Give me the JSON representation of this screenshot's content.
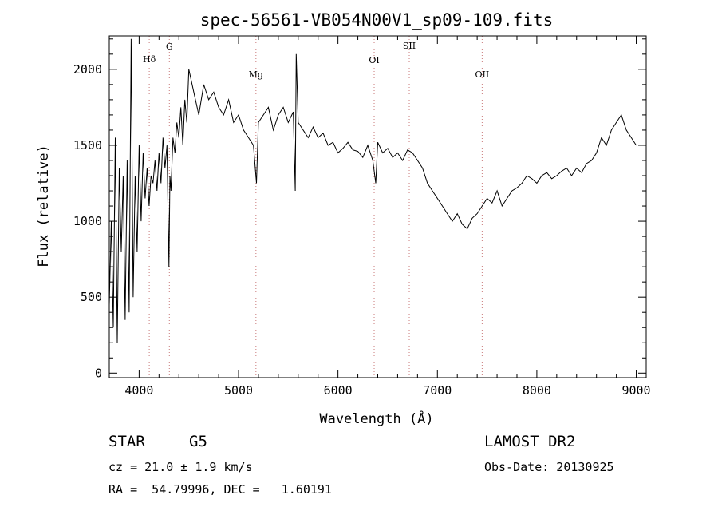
{
  "chart_data": {
    "type": "line",
    "title": "spec-56561-VB054N00V1_sp09-109.fits",
    "xlabel": "Wavelength (Å)",
    "ylabel": "Flux (relative)",
    "xlim": [
      3700,
      9100
    ],
    "ylim": [
      -30,
      2220
    ],
    "x_ticks": [
      4000,
      5000,
      6000,
      7000,
      8000,
      9000
    ],
    "y_ticks": [
      0,
      500,
      1000,
      1500,
      2000
    ],
    "grid": false,
    "series": [
      {
        "color": "#000000",
        "x": [
          3700,
          3720,
          3740,
          3760,
          3780,
          3800,
          3820,
          3840,
          3860,
          3880,
          3900,
          3920,
          3940,
          3960,
          3980,
          4000,
          4020,
          4040,
          4060,
          4080,
          4100,
          4120,
          4140,
          4160,
          4180,
          4200,
          4220,
          4240,
          4260,
          4280,
          4300,
          4310,
          4320,
          4340,
          4360,
          4380,
          4400,
          4420,
          4440,
          4460,
          4480,
          4500,
          4550,
          4600,
          4650,
          4700,
          4750,
          4800,
          4850,
          4900,
          4950,
          5000,
          5050,
          5100,
          5150,
          5180,
          5200,
          5250,
          5300,
          5350,
          5400,
          5450,
          5500,
          5550,
          5570,
          5580,
          5600,
          5650,
          5700,
          5750,
          5800,
          5850,
          5900,
          5950,
          6000,
          6050,
          6100,
          6150,
          6200,
          6250,
          6300,
          6350,
          6380,
          6400,
          6450,
          6500,
          6550,
          6600,
          6650,
          6700,
          6750,
          6800,
          6850,
          6900,
          6950,
          7000,
          7050,
          7100,
          7150,
          7200,
          7250,
          7300,
          7350,
          7400,
          7450,
          7500,
          7550,
          7600,
          7650,
          7700,
          7750,
          7800,
          7850,
          7900,
          7950,
          8000,
          8050,
          8100,
          8150,
          8200,
          8250,
          8300,
          8350,
          8400,
          8450,
          8500,
          8550,
          8600,
          8650,
          8700,
          8750,
          8800,
          8850,
          8900,
          8950,
          9000
        ],
        "y": [
          450,
          1000,
          300,
          1550,
          200,
          1350,
          800,
          1300,
          350,
          1400,
          400,
          2200,
          500,
          1300,
          800,
          1500,
          1000,
          1450,
          1150,
          1350,
          1100,
          1300,
          1250,
          1400,
          1200,
          1450,
          1250,
          1550,
          1350,
          1500,
          700,
          1300,
          1200,
          1550,
          1450,
          1650,
          1550,
          1750,
          1500,
          1800,
          1650,
          2000,
          1850,
          1700,
          1900,
          1800,
          1850,
          1750,
          1700,
          1800,
          1650,
          1700,
          1600,
          1550,
          1500,
          1250,
          1650,
          1700,
          1750,
          1600,
          1700,
          1750,
          1650,
          1720,
          1200,
          2100,
          1650,
          1600,
          1550,
          1620,
          1550,
          1580,
          1500,
          1520,
          1450,
          1480,
          1520,
          1470,
          1460,
          1420,
          1500,
          1400,
          1250,
          1520,
          1450,
          1480,
          1420,
          1450,
          1400,
          1470,
          1450,
          1400,
          1350,
          1250,
          1200,
          1150,
          1100,
          1050,
          1000,
          1050,
          980,
          950,
          1020,
          1050,
          1100,
          1150,
          1120,
          1200,
          1100,
          1150,
          1200,
          1220,
          1250,
          1300,
          1280,
          1250,
          1300,
          1320,
          1280,
          1300,
          1330,
          1350,
          1300,
          1350,
          1320,
          1380,
          1400,
          1450,
          1550,
          1500,
          1600,
          1650,
          1700,
          1600,
          1550,
          1500
        ]
      }
    ],
    "annotations": [
      {
        "label": "Hδ",
        "wavelength": 4102
      },
      {
        "label": "G",
        "wavelength": 4304
      },
      {
        "label": "Mg",
        "wavelength": 5175
      },
      {
        "label": "OI",
        "wavelength": 6364
      },
      {
        "label": "SII",
        "wavelength": 6717
      },
      {
        "label": "OII",
        "wavelength": 7450
      }
    ]
  },
  "info": {
    "class": "STAR",
    "subclass": "G5",
    "survey": "LAMOST DR2",
    "cz": "cz = 21.0 ± 1.9 km/s",
    "obs_date": "Obs-Date: 20130925",
    "coords": "RA =  54.79996, DEC =   1.60191"
  }
}
